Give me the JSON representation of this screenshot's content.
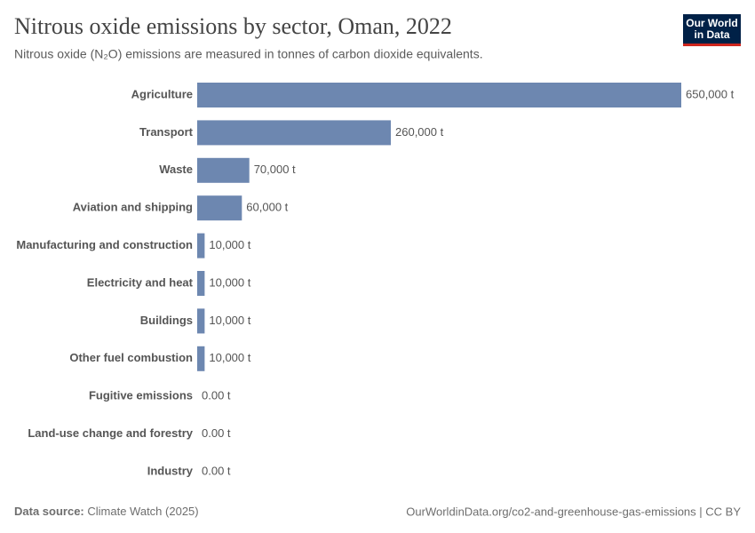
{
  "chart_data": {
    "type": "bar",
    "orientation": "horizontal",
    "title": "Nitrous oxide emissions by sector, Oman, 2022",
    "subtitle": "Nitrous oxide (N₂O) emissions are measured in tonnes of carbon dioxide equivalents.",
    "logo": [
      "Our World",
      "in Data"
    ],
    "source_label": "Data source:",
    "source": "Climate Watch (2025)",
    "url": "OurWorldinData.org/co2-and-greenhouse-gas-emissions | CC BY",
    "categories": [
      "Agriculture",
      "Transport",
      "Waste",
      "Aviation and shipping",
      "Manufacturing and construction",
      "Electricity and heat",
      "Buildings",
      "Other fuel combustion",
      "Fugitive emissions",
      "Land-use change and forestry",
      "Industry"
    ],
    "values": [
      650000,
      260000,
      70000,
      60000,
      10000,
      10000,
      10000,
      10000,
      0,
      0,
      0
    ],
    "value_labels": [
      "650,000 t",
      "260,000 t",
      "70,000 t",
      "60,000 t",
      "10,000 t",
      "10,000 t",
      "10,000 t",
      "10,000 t",
      "0.00 t",
      "0.00 t",
      "0.00 t"
    ],
    "color": "#6d87b0"
  }
}
